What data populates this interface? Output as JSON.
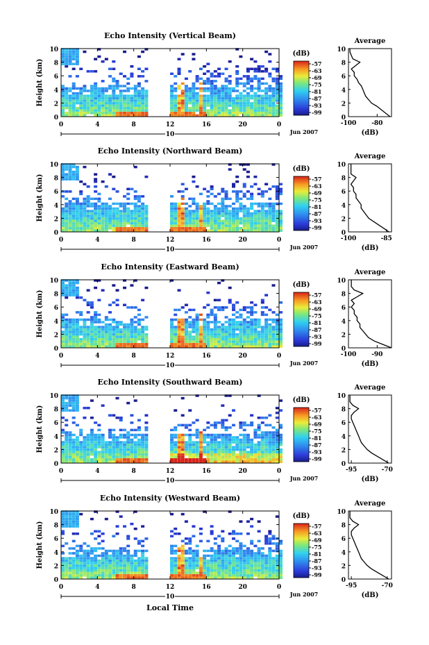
{
  "x_label": "Local Time",
  "colorbar": {
    "unit": "(dB)",
    "ticks": [
      "-57",
      "-63",
      "-69",
      "-75",
      "-81",
      "-87",
      "-93",
      "-99"
    ]
  },
  "avg_title": "Average",
  "avg_xlabel": "(dB)",
  "date_label": "Jun 2007",
  "day_label": "10",
  "chart_data": [
    {
      "type": "heatmap",
      "title": "Echo Intensity (Vertical Beam)",
      "ylabel": "Height (km)",
      "ylim": [
        0,
        10
      ],
      "y_ticks": [
        "0",
        "2",
        "4",
        "6",
        "8",
        "10"
      ],
      "x_ticks": [
        "0",
        "4",
        "8",
        "12",
        "16",
        "20",
        "0"
      ],
      "xlim": [
        0,
        24
      ],
      "data_gap_hours": [
        9.5,
        12
      ],
      "color_range_dB": [
        -99,
        -57
      ],
      "average_profile": {
        "x_ticks": [
          "-100",
          "-80"
        ],
        "xlim": [
          -100,
          -70
        ],
        "height_km": [
          0,
          0.5,
          1,
          1.5,
          2,
          2.5,
          3,
          3.5,
          4,
          4.5,
          5,
          5.5,
          6,
          6.5,
          7,
          7.5,
          8,
          8.5,
          9,
          9.5,
          10
        ],
        "dB": [
          -71,
          -74,
          -77,
          -80,
          -84,
          -86,
          -88,
          -89,
          -90,
          -91,
          -93,
          -94,
          -96,
          -96,
          -98,
          -95,
          -92,
          -97,
          -98,
          -99,
          -99
        ]
      }
    },
    {
      "type": "heatmap",
      "title": "Echo Intensity (Northward Beam)",
      "ylabel": "Height (km)",
      "ylim": [
        0,
        10
      ],
      "y_ticks": [
        "0",
        "2",
        "4",
        "6",
        "8",
        "10"
      ],
      "x_ticks": [
        "0",
        "4",
        "8",
        "12",
        "16",
        "20",
        "0"
      ],
      "xlim": [
        0,
        24
      ],
      "data_gap_hours": [
        9.5,
        12
      ],
      "color_range_dB": [
        -99,
        -57
      ],
      "average_profile": {
        "x_ticks": [
          "-100",
          "-85"
        ],
        "xlim": [
          -100,
          -83
        ],
        "height_km": [
          0,
          0.5,
          1,
          1.5,
          2,
          2.5,
          3,
          3.5,
          4,
          4.5,
          5,
          5.5,
          6,
          6.5,
          7,
          7.5,
          8,
          8.5,
          9,
          9.5,
          10
        ],
        "dB": [
          -84,
          -86,
          -88,
          -90,
          -92,
          -93,
          -94,
          -95,
          -95,
          -96,
          -97,
          -97,
          -98,
          -98,
          -99,
          -98,
          -97,
          -99,
          -99,
          -99,
          -99
        ]
      }
    },
    {
      "type": "heatmap",
      "title": "Echo Intensity (Eastward Beam)",
      "ylabel": "Height (km)",
      "ylim": [
        0,
        10
      ],
      "y_ticks": [
        "0",
        "2",
        "4",
        "6",
        "8",
        "10"
      ],
      "x_ticks": [
        "0",
        "4",
        "8",
        "12",
        "16",
        "20",
        "0"
      ],
      "xlim": [
        0,
        24
      ],
      "data_gap_hours": [
        9.5,
        12
      ],
      "color_range_dB": [
        -99,
        -57
      ],
      "average_profile": {
        "x_ticks": [
          "-100",
          "-90"
        ],
        "xlim": [
          -100,
          -85
        ],
        "height_km": [
          0,
          0.5,
          1,
          1.5,
          2,
          2.5,
          3,
          3.5,
          4,
          4.5,
          5,
          5.5,
          6,
          6.5,
          7,
          7.5,
          8,
          8.5,
          9,
          9.5,
          10
        ],
        "dB": [
          -85,
          -88,
          -91,
          -93,
          -94,
          -95,
          -96,
          -96,
          -97,
          -97,
          -98,
          -98,
          -99,
          -98,
          -99,
          -97,
          -95,
          -98,
          -99,
          -99,
          -99
        ]
      }
    },
    {
      "type": "heatmap",
      "title": "Echo Intensity (Southward Beam)",
      "ylabel": "Height (km)",
      "ylim": [
        0,
        10
      ],
      "y_ticks": [
        "0",
        "2",
        "4",
        "6",
        "8",
        "10"
      ],
      "x_ticks": [
        "0",
        "4",
        "8",
        "12",
        "16",
        "20",
        "0"
      ],
      "xlim": [
        0,
        24
      ],
      "data_gap_hours": [
        9.5,
        12
      ],
      "color_range_dB": [
        -99,
        -57
      ],
      "average_profile": {
        "x_ticks": [
          "-95",
          "-70"
        ],
        "xlim": [
          -97,
          -67
        ],
        "height_km": [
          0,
          0.5,
          1,
          1.5,
          2,
          2.5,
          3,
          3.5,
          4,
          4.5,
          5,
          5.5,
          6,
          6.5,
          7,
          7.5,
          8,
          8.5,
          9,
          9.5,
          10
        ],
        "dB": [
          -69,
          -73,
          -77,
          -81,
          -84,
          -86,
          -88,
          -89,
          -90,
          -91,
          -92,
          -93,
          -94,
          -95,
          -95,
          -93,
          -90,
          -94,
          -96,
          -96,
          -96
        ]
      }
    },
    {
      "type": "heatmap",
      "title": "Echo Intensity (Westward Beam)",
      "ylabel": "Height (km)",
      "ylim": [
        0,
        10
      ],
      "y_ticks": [
        "0",
        "2",
        "4",
        "6",
        "8",
        "10"
      ],
      "x_ticks": [
        "0",
        "4",
        "8",
        "12",
        "16",
        "20",
        "0"
      ],
      "xlim": [
        0,
        24
      ],
      "data_gap_hours": [
        9.5,
        12
      ],
      "color_range_dB": [
        -99,
        -57
      ],
      "average_profile": {
        "x_ticks": [
          "-95",
          "-70"
        ],
        "xlim": [
          -97,
          -67
        ],
        "height_km": [
          0,
          0.5,
          1,
          1.5,
          2,
          2.5,
          3,
          3.5,
          4,
          4.5,
          5,
          5.5,
          6,
          6.5,
          7,
          7.5,
          8,
          8.5,
          9,
          9.5,
          10
        ],
        "dB": [
          -69,
          -73,
          -77,
          -81,
          -84,
          -86,
          -88,
          -89,
          -90,
          -91,
          -92,
          -93,
          -94,
          -95,
          -95,
          -93,
          -90,
          -94,
          -96,
          -96,
          -96
        ]
      }
    }
  ]
}
